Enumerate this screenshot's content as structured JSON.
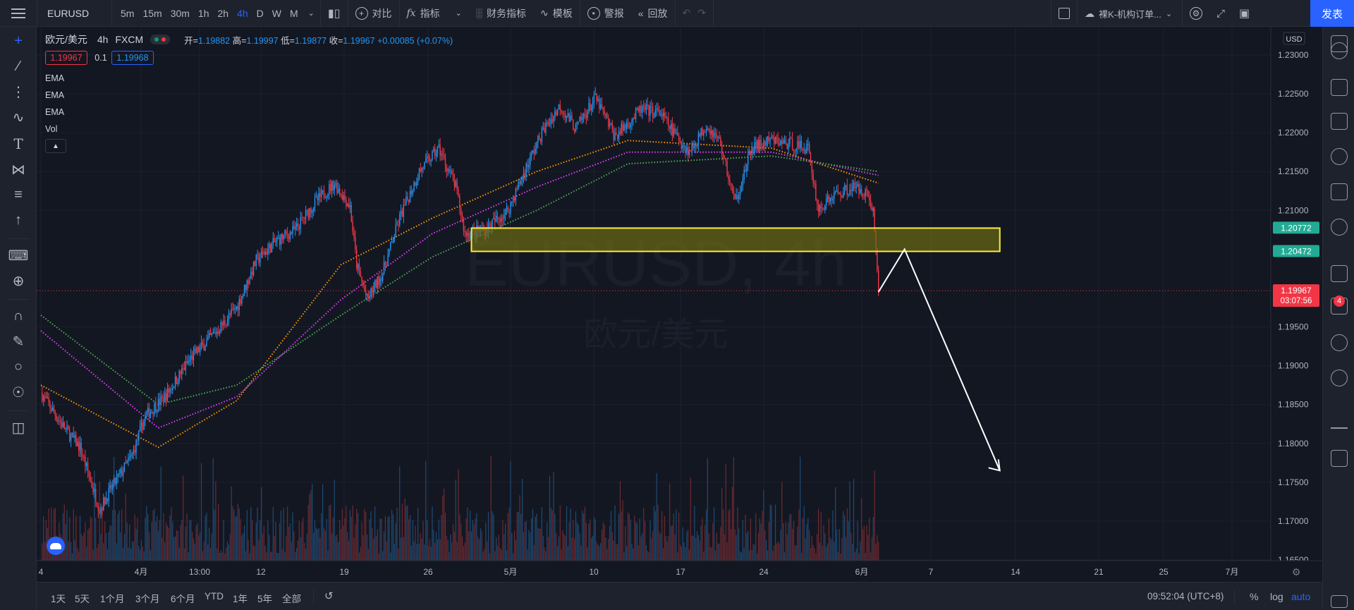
{
  "toolbar": {
    "symbol": "EURUSD",
    "intervals": [
      "5m",
      "15m",
      "30m",
      "1h",
      "2h",
      "4h",
      "D",
      "W",
      "M"
    ],
    "active_interval": "4h",
    "compare_label": "对比",
    "indicators_label": "指标",
    "financials_label": "财务指标",
    "templates_label": "模板",
    "alert_label": "警报",
    "replay_label": "回放",
    "layout_name": "裸K-机构订单...",
    "publish_label": "发表"
  },
  "legend": {
    "title": "欧元/美元",
    "interval": "4h",
    "exchange": "FXCM",
    "open_label": "开=",
    "open": "1.19882",
    "high_label": "高=",
    "high": "1.19997",
    "low_label": "低=",
    "low": "1.19877",
    "close_label": "收=",
    "close": "1.19967",
    "change": "+0.00085 (+0.07%)",
    "bid": "1.19967",
    "spread": "0.1",
    "ask": "1.19968",
    "indicators": [
      "EMA",
      "EMA",
      "EMA",
      "Vol"
    ]
  },
  "watermark": {
    "symbol": "EURUSD, 4h",
    "name": "欧元/美元"
  },
  "price_axis": {
    "currency": "USD",
    "ticks": [
      "1.23000",
      "1.22500",
      "1.22000",
      "1.21500",
      "1.21000",
      "1.19500",
      "1.19000",
      "1.18500",
      "1.18000",
      "1.17500",
      "1.17000",
      "1.16500"
    ],
    "zone_top_label": "1.20772",
    "zone_bottom_label": "1.20472",
    "last_price_label": "1.19967",
    "countdown": "03:07:56"
  },
  "time_axis": {
    "ticks": [
      "4",
      "4月",
      "13:00",
      "12",
      "19",
      "26",
      "5月",
      "10",
      "17",
      "24",
      "6月",
      "7",
      "14",
      "21",
      "25",
      "7月"
    ]
  },
  "bottom_bar": {
    "ranges": [
      "1天",
      "5天",
      "1个月",
      "3个月",
      "6个月",
      "YTD",
      "1年",
      "5年",
      "全部"
    ],
    "clock": "09:52:04 (UTC+8)",
    "percent_label": "%",
    "log_label": "log",
    "auto_label": "auto"
  },
  "notifications_count": "4",
  "colors": {
    "up": "#2196f3",
    "down": "#f23645",
    "ema_fast": "#ff9800",
    "ema_mid": "#e040fb",
    "ema_slow": "#4caf50",
    "zone_border": "#ffeb3b",
    "zone_fill": "#6b6b12"
  },
  "chart_data": {
    "type": "candlestick",
    "symbol": "EURUSD",
    "interval": "4h",
    "price_range": [
      1.165,
      1.2315
    ],
    "close_path": [
      [
        0,
        1.1865
      ],
      [
        20,
        1.1815
      ],
      [
        30,
        1.1795
      ],
      [
        45,
        1.1715
      ],
      [
        55,
        1.1745
      ],
      [
        70,
        1.1785
      ],
      [
        80,
        1.1835
      ],
      [
        95,
        1.186
      ],
      [
        115,
        1.191
      ],
      [
        135,
        1.1945
      ],
      [
        150,
        1.1975
      ],
      [
        165,
        1.2035
      ],
      [
        180,
        1.206
      ],
      [
        195,
        1.2075
      ],
      [
        210,
        1.211
      ],
      [
        225,
        1.2135
      ],
      [
        237,
        1.2105
      ],
      [
        242,
        1.203
      ],
      [
        250,
        1.1985
      ],
      [
        262,
        1.202
      ],
      [
        275,
        1.209
      ],
      [
        290,
        1.215
      ],
      [
        305,
        1.218
      ],
      [
        318,
        1.213
      ],
      [
        325,
        1.207
      ],
      [
        340,
        1.2075
      ],
      [
        358,
        1.21
      ],
      [
        372,
        1.2155
      ],
      [
        384,
        1.22
      ],
      [
        398,
        1.2235
      ],
      [
        410,
        1.2205
      ],
      [
        425,
        1.2245
      ],
      [
        440,
        1.2195
      ],
      [
        460,
        1.223
      ],
      [
        475,
        1.2225
      ],
      [
        485,
        1.22
      ],
      [
        497,
        1.2175
      ],
      [
        510,
        1.221
      ],
      [
        520,
        1.219
      ],
      [
        532,
        1.211
      ],
      [
        545,
        1.218
      ],
      [
        560,
        1.219
      ],
      [
        575,
        1.2185
      ],
      [
        588,
        1.218
      ],
      [
        596,
        1.21
      ],
      [
        608,
        1.212
      ],
      [
        622,
        1.213
      ],
      [
        632,
        1.2125
      ],
      [
        638,
        1.21
      ],
      [
        642,
        1.1995
      ]
    ],
    "ema_fast": [
      [
        0,
        1.1875
      ],
      [
        90,
        1.1795
      ],
      [
        150,
        1.1855
      ],
      [
        230,
        1.203
      ],
      [
        300,
        1.209
      ],
      [
        380,
        1.215
      ],
      [
        450,
        1.219
      ],
      [
        560,
        1.218
      ],
      [
        642,
        1.2135
      ]
    ],
    "ema_mid": [
      [
        0,
        1.1945
      ],
      [
        90,
        1.182
      ],
      [
        150,
        1.186
      ],
      [
        230,
        1.1985
      ],
      [
        300,
        1.207
      ],
      [
        380,
        1.213
      ],
      [
        450,
        1.2175
      ],
      [
        560,
        1.2175
      ],
      [
        642,
        1.2145
      ]
    ],
    "ema_slow": [
      [
        0,
        1.1965
      ],
      [
        90,
        1.185
      ],
      [
        150,
        1.1875
      ],
      [
        230,
        1.1965
      ],
      [
        300,
        1.204
      ],
      [
        380,
        1.21
      ],
      [
        450,
        1.216
      ],
      [
        560,
        1.217
      ],
      [
        642,
        1.215
      ]
    ],
    "zone": {
      "from_bar": 330,
      "to_bar": 735,
      "top": 1.20772,
      "bottom": 1.20472
    },
    "projection": [
      [
        642,
        1.1995
      ],
      [
        662,
        1.205
      ],
      [
        735,
        1.1765
      ]
    ],
    "last_price": 1.19967
  }
}
